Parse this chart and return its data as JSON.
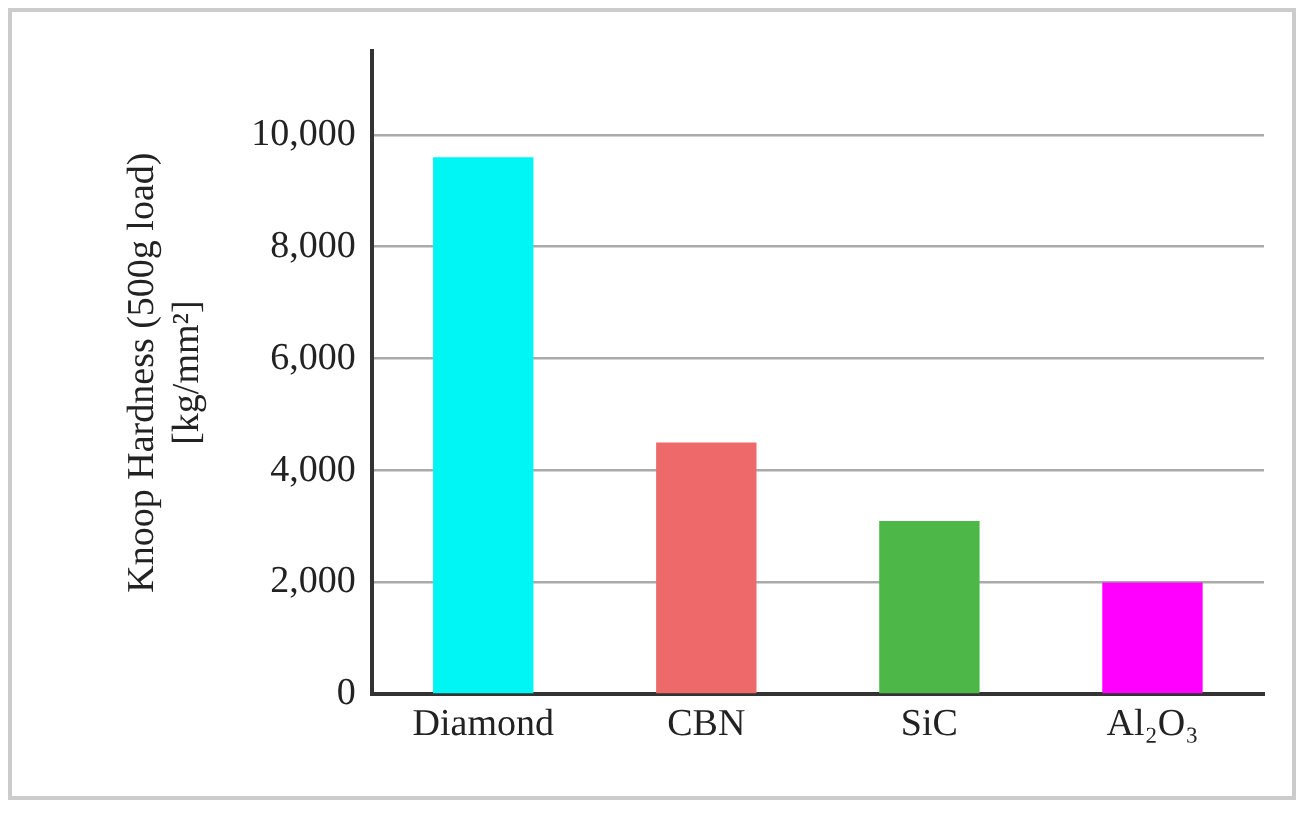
{
  "chart_data": {
    "type": "bar",
    "ylabel": "Knoop Hardness (500g load)\n[kg/mm²]",
    "categories": [
      "Diamond",
      "CBN",
      "SiC",
      "Al₂O₃"
    ],
    "values": [
      9600,
      4500,
      3100,
      2000
    ],
    "colors": [
      "#00f5f5",
      "#ee6a6a",
      "#4db848",
      "#ff00ff"
    ],
    "ylim": [
      0,
      11500
    ],
    "yticks": [
      0,
      {
        "value": 2000,
        "label": "2,000"
      },
      {
        "value": 4000,
        "label": "4,000"
      },
      {
        "value": 6000,
        "label": "6,000"
      },
      {
        "value": 8000,
        "label": "8,000"
      },
      {
        "value": 10000,
        "label": "10,000"
      }
    ],
    "grid": "y",
    "legend": false
  }
}
